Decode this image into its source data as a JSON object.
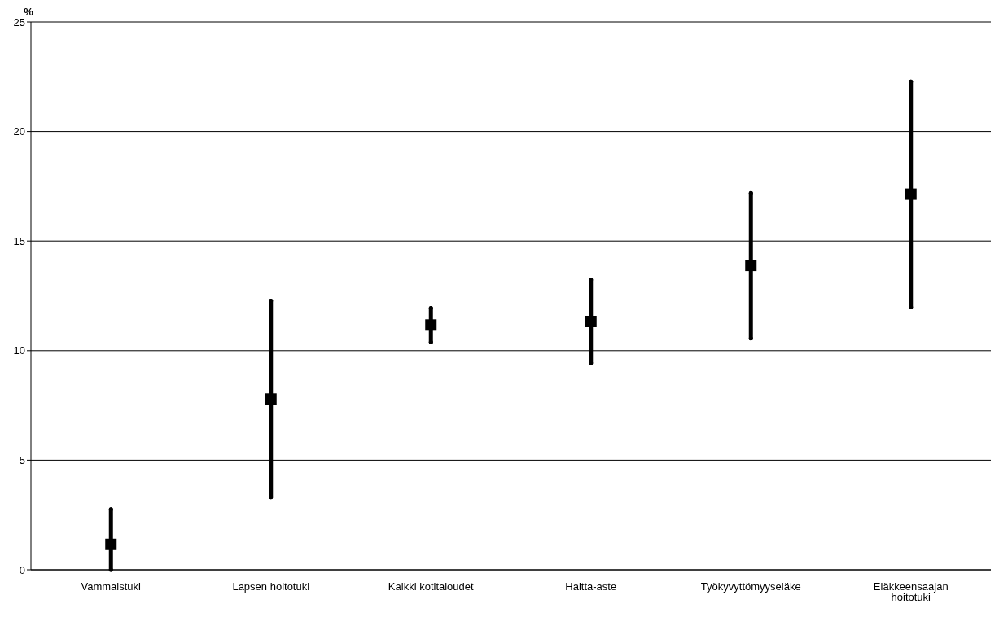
{
  "chart_data": {
    "type": "scatter",
    "ylabel": "%",
    "categories": [
      "Vammaistuki",
      "Lapsen hoitotuki",
      "Kaikki kotitaloudet",
      "Haitta-aste",
      "Työkyvyttömyyseläke",
      "Eläkkeensaajan hoitotuki"
    ],
    "values": [
      1.16,
      7.79,
      11.17,
      11.33,
      13.89,
      17.14
    ],
    "errors": [
      [
        0,
        2.76
      ],
      [
        3.32,
        12.28
      ],
      [
        10.39,
        11.94
      ],
      [
        9.44,
        13.23
      ],
      [
        10.56,
        17.19
      ],
      [
        11.99,
        22.28
      ]
    ],
    "color": "#000000",
    "marker": "square",
    "ylim": [
      0,
      25
    ],
    "yticks": [
      0,
      5,
      10,
      15,
      20,
      25
    ],
    "grid": "y"
  }
}
